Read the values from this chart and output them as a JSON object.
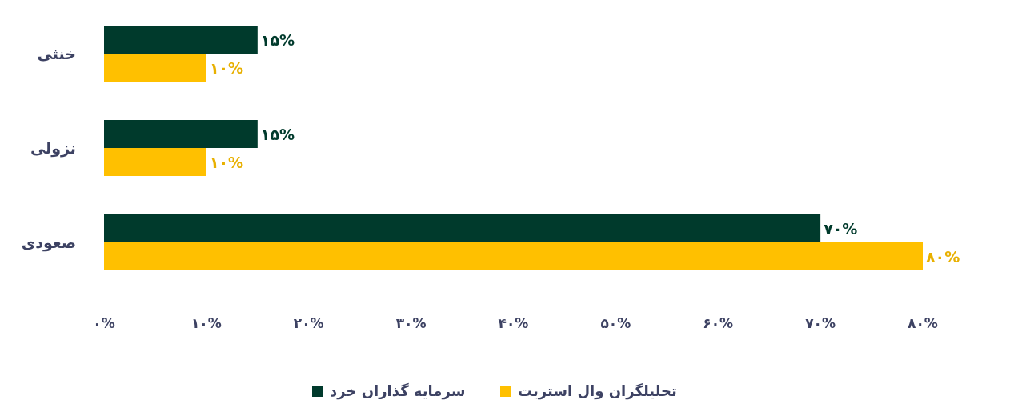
{
  "chart_data": {
    "type": "bar",
    "orientation": "horizontal",
    "categories": [
      "خنثی",
      "نزولی",
      "صعودی"
    ],
    "series": [
      {
        "name": "سرمایه گذاران خرد",
        "color": "#003a2c",
        "values": [
          15,
          15,
          70
        ],
        "value_labels": [
          "۱۵%",
          "۱۵%",
          "۷۰%"
        ]
      },
      {
        "name": "تحلیلگران وال استریت",
        "color": "#ffc000",
        "values": [
          10,
          10,
          80
        ],
        "value_labels": [
          "۱۰%",
          "۱۰%",
          "۸۰%"
        ]
      }
    ],
    "xlim": [
      0,
      80
    ],
    "xticks": [
      {
        "value": 0,
        "label": "۰%"
      },
      {
        "value": 10,
        "label": "۱۰%"
      },
      {
        "value": 20,
        "label": "۲۰%"
      },
      {
        "value": 30,
        "label": "۳۰%"
      },
      {
        "value": 40,
        "label": "۴۰%"
      },
      {
        "value": 50,
        "label": "۵۰%"
      },
      {
        "value": 60,
        "label": "۶۰%"
      },
      {
        "value": 70,
        "label": "۷۰%"
      },
      {
        "value": 80,
        "label": "۸۰%"
      }
    ],
    "legend": "bottom"
  }
}
